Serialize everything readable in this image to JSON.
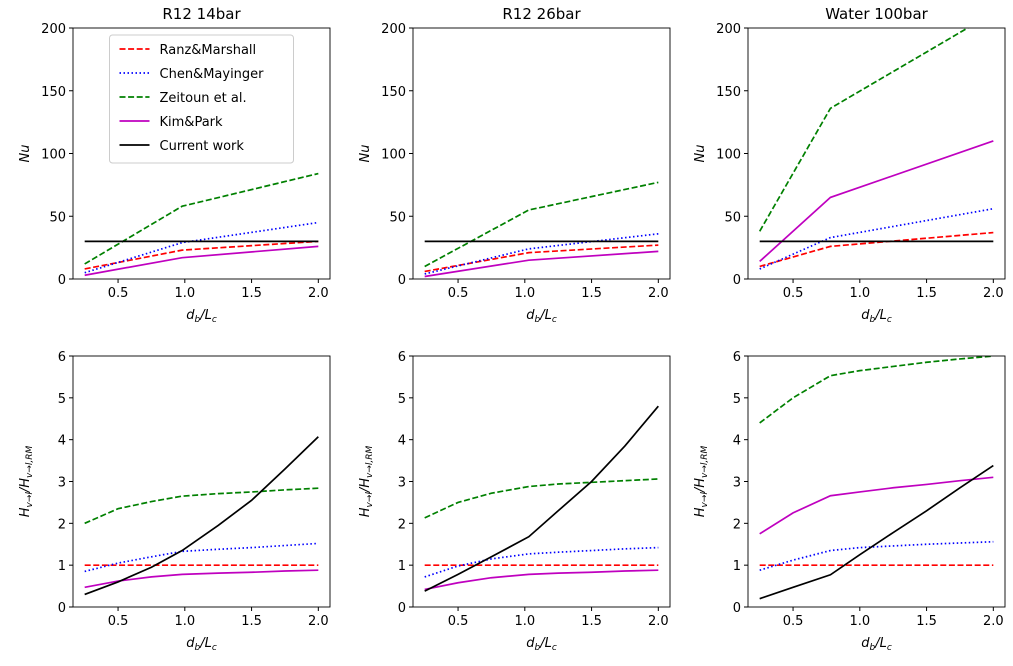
{
  "chart_data": [
    {
      "type": "line",
      "title": "R12 14bar",
      "ylabel_parts": [
        "Nu"
      ],
      "xlabel_parts": [
        "d",
        "b",
        "/L",
        "c"
      ],
      "legend": "upper center",
      "xlim": [
        0.1625,
        2.0875
      ],
      "ylim": [
        0,
        200
      ],
      "xticks": [
        0.5,
        {
          "value": 1,
          "label": "1.0"
        },
        1.5,
        {
          "value": 2,
          "label": "2.0"
        }
      ],
      "yticks": [
        0,
        50,
        100,
        150,
        200
      ],
      "x": [
        0.25,
        0.98,
        2.0
      ],
      "series": [
        {
          "name": "Ranz&Marshall",
          "color": "#ff0000",
          "linestyle": "dashed",
          "values": [
            8,
            23,
            30
          ]
        },
        {
          "name": "Chen&Mayinger",
          "color": "#0000ff",
          "linestyle": "dotted",
          "values": [
            5,
            29,
            45
          ]
        },
        {
          "name": "Zeitoun et al.",
          "color": "#008000",
          "linestyle": "dashed",
          "values": [
            12,
            58,
            84
          ]
        },
        {
          "name": "Kim&Park",
          "color": "#bf00bf",
          "linestyle": "solid",
          "values": [
            3,
            17,
            26
          ]
        },
        {
          "name": "Current work",
          "color": "#000000",
          "linestyle": "solid",
          "values": [
            30,
            30,
            30
          ]
        }
      ]
    },
    {
      "type": "line",
      "title": "R12 26bar",
      "ylabel_parts": [
        "Nu"
      ],
      "xlabel_parts": [
        "d",
        "b",
        "/L",
        "c"
      ],
      "xlim": [
        0.1625,
        2.0875
      ],
      "ylim": [
        0,
        200
      ],
      "xticks": [
        0.5,
        {
          "value": 1,
          "label": "1.0"
        },
        1.5,
        {
          "value": 2,
          "label": "2.0"
        }
      ],
      "yticks": [
        0,
        50,
        100,
        150,
        200
      ],
      "x": [
        0.25,
        1.03,
        2.0
      ],
      "series": [
        {
          "name": "Ranz&Marshall",
          "color": "#ff0000",
          "linestyle": "dashed",
          "values": [
            6,
            21,
            27
          ]
        },
        {
          "name": "Chen&Mayinger",
          "color": "#0000ff",
          "linestyle": "dotted",
          "values": [
            4,
            24,
            36
          ]
        },
        {
          "name": "Zeitoun et al.",
          "color": "#008000",
          "linestyle": "dashed",
          "values": [
            10,
            55,
            77
          ]
        },
        {
          "name": "Kim&Park",
          "color": "#bf00bf",
          "linestyle": "solid",
          "values": [
            2,
            15,
            22
          ]
        },
        {
          "name": "Current work",
          "color": "#000000",
          "linestyle": "solid",
          "values": [
            30,
            30,
            30
          ]
        }
      ]
    },
    {
      "type": "line",
      "title": "Water 100bar",
      "ylabel_parts": [
        "Nu"
      ],
      "xlabel_parts": [
        "d",
        "b",
        "/L",
        "c"
      ],
      "xlim": [
        0.1625,
        2.0875
      ],
      "ylim": [
        0,
        200
      ],
      "xticks": [
        0.5,
        {
          "value": 1,
          "label": "1.0"
        },
        1.5,
        {
          "value": 2,
          "label": "2.0"
        }
      ],
      "yticks": [
        0,
        50,
        100,
        150,
        200
      ],
      "x": [
        0.25,
        0.78,
        2.0
      ],
      "series": [
        {
          "name": "Ranz&Marshall",
          "color": "#ff0000",
          "linestyle": "dashed",
          "values": [
            10,
            26,
            37
          ]
        },
        {
          "name": "Chen&Mayinger",
          "color": "#0000ff",
          "linestyle": "dotted",
          "values": [
            8,
            33,
            56
          ]
        },
        {
          "name": "Zeitoun et al.",
          "color": "#008000",
          "linestyle": "dashed",
          "values": [
            38,
            136,
            212
          ]
        },
        {
          "name": "Kim&Park",
          "color": "#bf00bf",
          "linestyle": "solid",
          "values": [
            14,
            65,
            110
          ]
        },
        {
          "name": "Current work",
          "color": "#000000",
          "linestyle": "solid",
          "values": [
            30,
            30,
            30
          ]
        }
      ]
    },
    {
      "type": "line",
      "ylabel_parts": [
        "H",
        "v→l",
        "/H",
        "v→l,RM"
      ],
      "xlabel_parts": [
        "d",
        "b",
        "/L",
        "c"
      ],
      "xlim": [
        0.1625,
        2.0875
      ],
      "ylim": [
        0,
        6
      ],
      "xticks": [
        0.5,
        {
          "value": 1,
          "label": "1.0"
        },
        1.5,
        {
          "value": 2,
          "label": "2.0"
        }
      ],
      "yticks": [
        0,
        1,
        2,
        3,
        4,
        5,
        6
      ],
      "x": [
        0.25,
        0.5,
        0.75,
        0.98,
        1.25,
        1.5,
        1.75,
        2.0
      ],
      "series": [
        {
          "name": "Ranz&Marshall",
          "color": "#ff0000",
          "linestyle": "dashed",
          "values": [
            1,
            1,
            1,
            1,
            1,
            1,
            1,
            1
          ]
        },
        {
          "name": "Chen&Mayinger",
          "color": "#0000ff",
          "linestyle": "dotted",
          "values": [
            0.85,
            1.05,
            1.2,
            1.33,
            1.38,
            1.42,
            1.47,
            1.52
          ]
        },
        {
          "name": "Zeitoun et al.",
          "color": "#008000",
          "linestyle": "dashed",
          "values": [
            2.0,
            2.35,
            2.52,
            2.65,
            2.71,
            2.75,
            2.8,
            2.84
          ]
        },
        {
          "name": "Kim&Park",
          "color": "#bf00bf",
          "linestyle": "solid",
          "values": [
            0.47,
            0.62,
            0.72,
            0.78,
            0.81,
            0.83,
            0.86,
            0.88
          ]
        },
        {
          "name": "Current work",
          "color": "#000000",
          "linestyle": "solid",
          "values": [
            0.3,
            0.6,
            0.95,
            1.35,
            1.95,
            2.55,
            3.3,
            4.07
          ]
        }
      ]
    },
    {
      "type": "line",
      "ylabel_parts": [
        "H",
        "v→l",
        "/H",
        "v→l,RM"
      ],
      "xlabel_parts": [
        "d",
        "b",
        "/L",
        "c"
      ],
      "xlim": [
        0.1625,
        2.0875
      ],
      "ylim": [
        0,
        6
      ],
      "xticks": [
        0.5,
        {
          "value": 1,
          "label": "1.0"
        },
        1.5,
        {
          "value": 2,
          "label": "2.0"
        }
      ],
      "yticks": [
        0,
        1,
        2,
        3,
        4,
        5,
        6
      ],
      "x": [
        0.25,
        0.5,
        0.75,
        1.03,
        1.25,
        1.5,
        1.75,
        2.0
      ],
      "series": [
        {
          "name": "Ranz&Marshall",
          "color": "#ff0000",
          "linestyle": "dashed",
          "values": [
            1,
            1,
            1,
            1,
            1,
            1,
            1,
            1
          ]
        },
        {
          "name": "Chen&Mayinger",
          "color": "#0000ff",
          "linestyle": "dotted",
          "values": [
            0.72,
            0.98,
            1.15,
            1.27,
            1.31,
            1.35,
            1.39,
            1.42
          ]
        },
        {
          "name": "Zeitoun et al.",
          "color": "#008000",
          "linestyle": "dashed",
          "values": [
            2.13,
            2.5,
            2.72,
            2.88,
            2.94,
            2.98,
            3.02,
            3.06
          ]
        },
        {
          "name": "Kim&Park",
          "color": "#bf00bf",
          "linestyle": "solid",
          "values": [
            0.42,
            0.58,
            0.7,
            0.78,
            0.81,
            0.83,
            0.86,
            0.88
          ]
        },
        {
          "name": "Current work",
          "color": "#000000",
          "linestyle": "solid",
          "values": [
            0.38,
            0.78,
            1.2,
            1.68,
            2.3,
            3.0,
            3.85,
            4.8
          ]
        }
      ]
    },
    {
      "type": "line",
      "ylabel_parts": [
        "H",
        "v→l",
        "/H",
        "v→l,RM"
      ],
      "xlabel_parts": [
        "d",
        "b",
        "/L",
        "c"
      ],
      "xlim": [
        0.1625,
        2.0875
      ],
      "ylim": [
        0,
        6
      ],
      "xticks": [
        0.5,
        {
          "value": 1,
          "label": "1.0"
        },
        1.5,
        {
          "value": 2,
          "label": "2.0"
        }
      ],
      "yticks": [
        0,
        1,
        2,
        3,
        4,
        5,
        6
      ],
      "x": [
        0.25,
        0.5,
        0.78,
        1.0,
        1.25,
        1.5,
        1.75,
        2.0
      ],
      "series": [
        {
          "name": "Ranz&Marshall",
          "color": "#ff0000",
          "linestyle": "dashed",
          "values": [
            1,
            1,
            1,
            1,
            1,
            1,
            1,
            1
          ]
        },
        {
          "name": "Chen&Mayinger",
          "color": "#0000ff",
          "linestyle": "dotted",
          "values": [
            0.88,
            1.12,
            1.35,
            1.42,
            1.46,
            1.5,
            1.53,
            1.56
          ]
        },
        {
          "name": "Zeitoun et al.",
          "color": "#008000",
          "linestyle": "dashed",
          "values": [
            4.4,
            5.0,
            5.53,
            5.65,
            5.75,
            5.85,
            5.93,
            6.0
          ]
        },
        {
          "name": "Kim&Park",
          "color": "#bf00bf",
          "linestyle": "solid",
          "values": [
            1.75,
            2.25,
            2.66,
            2.75,
            2.85,
            2.93,
            3.02,
            3.1
          ]
        },
        {
          "name": "Current work",
          "color": "#000000",
          "linestyle": "solid",
          "values": [
            0.2,
            0.47,
            0.77,
            1.25,
            1.78,
            2.3,
            2.85,
            3.38
          ]
        }
      ]
    }
  ]
}
